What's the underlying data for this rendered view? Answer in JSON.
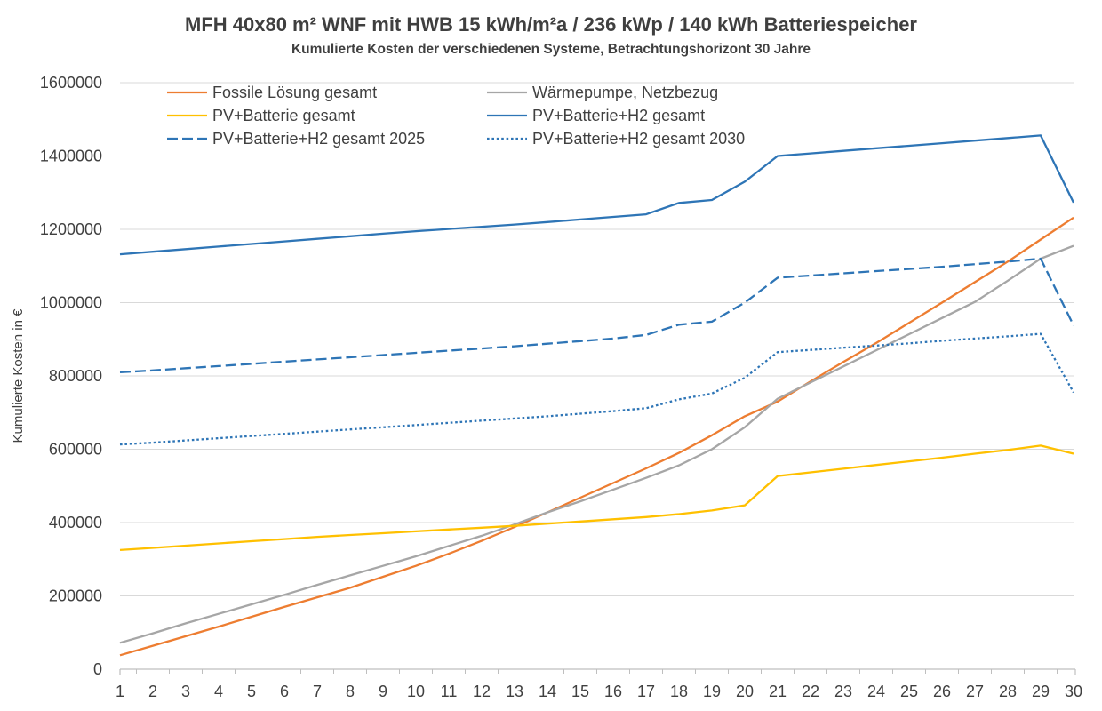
{
  "chart_data": {
    "type": "line",
    "title": "MFH 40x80 m² WNF mit HWB 15 kWh/m²a / 236 kWp / 140 kWh Batteriespeicher",
    "subtitle": "Kumulierte Kosten der verschiedenen Systeme, Betrachtungshorizont 30 Jahre",
    "ylabel": "Kumulierte Kosten in €",
    "xlabel": "",
    "ylim": [
      0,
      1600000
    ],
    "ytick_step": 200000,
    "y_ticks": [
      0,
      200000,
      400000,
      600000,
      800000,
      1000000,
      1200000,
      1400000,
      1600000
    ],
    "x": [
      1,
      2,
      3,
      4,
      5,
      6,
      7,
      8,
      9,
      10,
      11,
      12,
      13,
      14,
      15,
      16,
      17,
      18,
      19,
      20,
      21,
      22,
      23,
      24,
      25,
      26,
      27,
      28,
      29,
      30
    ],
    "grid": true,
    "legend_position": "top-inside-two-columns",
    "colors": {
      "orange": "#ED7D31",
      "gray": "#A6A6A6",
      "yellow": "#FFC000",
      "blue": "#2E75B6",
      "gridline": "#D9D9D9",
      "axis": "#BFBFBF",
      "text": "#404040"
    },
    "series": [
      {
        "name": "Fossile Lösung gesamt",
        "color": "#ED7D31",
        "style": "solid",
        "values": [
          38000,
          64000,
          90000,
          116000,
          143000,
          170000,
          196000,
          222000,
          252000,
          282000,
          315000,
          350000,
          388000,
          428000,
          468000,
          508000,
          548000,
          590000,
          638000,
          690000,
          730000,
          785000,
          838000,
          890000,
          945000,
          1000000,
          1056000,
          1112000,
          1172000,
          1232000
        ]
      },
      {
        "name": "Wärmepumpe, Netzbezug",
        "color": "#A6A6A6",
        "style": "solid",
        "values": [
          72000,
          98000,
          125000,
          151000,
          177000,
          203000,
          230000,
          256000,
          282000,
          308000,
          336000,
          364000,
          395000,
          428000,
          458000,
          490000,
          522000,
          556000,
          600000,
          660000,
          738000,
          782000,
          826000,
          870000,
          914000,
          958000,
          1002000,
          1060000,
          1120000,
          1155000
        ]
      },
      {
        "name": "PV+Batterie gesamt",
        "color": "#FFC000",
        "style": "solid",
        "values": [
          325000,
          331000,
          337000,
          343000,
          349000,
          355000,
          361000,
          366000,
          371000,
          376000,
          381000,
          386000,
          391000,
          397000,
          403000,
          409000,
          415000,
          423000,
          433000,
          447000,
          527000,
          537000,
          547000,
          557000,
          567000,
          577000,
          588000,
          598000,
          610000,
          588000
        ]
      },
      {
        "name": "PV+Batterie+H2 gesamt",
        "color": "#2E75B6",
        "style": "solid",
        "values": [
          1132000,
          1139000,
          1146000,
          1153000,
          1160000,
          1167000,
          1174000,
          1181000,
          1188000,
          1195000,
          1201000,
          1207000,
          1213000,
          1220000,
          1227000,
          1234000,
          1241000,
          1272000,
          1280000,
          1330000,
          1400000,
          1407000,
          1414000,
          1421000,
          1428000,
          1435000,
          1442000,
          1449000,
          1456000,
          1273000
        ]
      },
      {
        "name": "PV+Batterie+H2 gesamt 2025",
        "color": "#2E75B6",
        "style": "dashed",
        "values": [
          810000,
          815000,
          821000,
          827000,
          833000,
          839000,
          845000,
          851000,
          857000,
          863000,
          869000,
          875000,
          881000,
          888000,
          895000,
          902000,
          912000,
          940000,
          948000,
          1000000,
          1068000,
          1074000,
          1080000,
          1086000,
          1092000,
          1098000,
          1105000,
          1112000,
          1120000,
          938000
        ]
      },
      {
        "name": "PV+Batterie+H2 gesamt 2030",
        "color": "#2E75B6",
        "style": "dotted",
        "values": [
          613000,
          618000,
          624000,
          630000,
          636000,
          642000,
          648000,
          654000,
          660000,
          666000,
          672000,
          678000,
          684000,
          690000,
          697000,
          704000,
          712000,
          736000,
          752000,
          795000,
          865000,
          871000,
          877000,
          883000,
          889000,
          896000,
          902000,
          908000,
          915000,
          755000
        ]
      }
    ],
    "legend_rows": [
      [
        0,
        1
      ],
      [
        2,
        3
      ],
      [
        4,
        5
      ]
    ]
  }
}
